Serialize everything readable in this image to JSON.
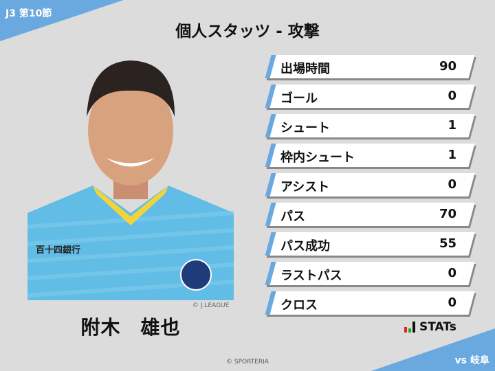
{
  "header": {
    "round": "J3 第10節",
    "title": "個人スタッツ - 攻撃",
    "opponent": "vs 岐阜"
  },
  "player": {
    "name": "附木　雄也",
    "photo_credit": "© J.LEAGUE",
    "sponsor": "百十四銀行"
  },
  "stats": [
    {
      "label": "出場時間",
      "value": "90"
    },
    {
      "label": "ゴール",
      "value": "0"
    },
    {
      "label": "シュート",
      "value": "1"
    },
    {
      "label": "枠内シュート",
      "value": "1"
    },
    {
      "label": "アシスト",
      "value": "0"
    },
    {
      "label": "パス",
      "value": "70"
    },
    {
      "label": "パス成功",
      "value": "55"
    },
    {
      "label": "ラストパス",
      "value": "0"
    },
    {
      "label": "クロス",
      "value": "0"
    }
  ],
  "brand": {
    "logo_text": "STATs"
  },
  "footer": {
    "copyright": "© SPORTERIA"
  },
  "colors": {
    "accent": "#6aa9e0",
    "background": "#dcdcdc"
  }
}
